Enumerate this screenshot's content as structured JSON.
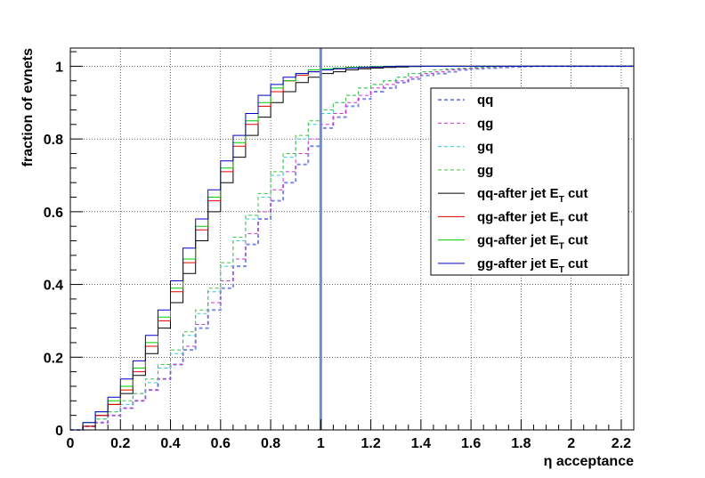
{
  "chart_data": {
    "type": "line",
    "xlabel": "η acceptance",
    "ylabel": "fraction of evnets",
    "xlim": [
      0,
      2.25
    ],
    "ylim": [
      0,
      1.05
    ],
    "x_ticks": [
      "0",
      "0.2",
      "0.4",
      "0.6",
      "0.8",
      "1",
      "1.2",
      "1.4",
      "1.6",
      "1.8",
      "2",
      "2.2"
    ],
    "y_ticks": [
      "0",
      "0.2",
      "0.4",
      "0.6",
      "0.8",
      "1"
    ],
    "grid": true,
    "legend_position": "right",
    "cut_line_x": 1.0,
    "bin_width": 0.05,
    "x": [
      0.0,
      0.05,
      0.1,
      0.15,
      0.2,
      0.25,
      0.3,
      0.35,
      0.4,
      0.45,
      0.5,
      0.55,
      0.6,
      0.65,
      0.7,
      0.75,
      0.8,
      0.85,
      0.9,
      0.95,
      1.0,
      1.05,
      1.1,
      1.15,
      1.2,
      1.25,
      1.3,
      1.35,
      1.4,
      1.45,
      1.5,
      1.55,
      1.6,
      1.65,
      1.7,
      1.75,
      1.8,
      1.85,
      1.9,
      1.95,
      2.0,
      2.05,
      2.1,
      2.15,
      2.2
    ],
    "series": [
      {
        "name": "qq",
        "values": [
          0.0,
          0.01,
          0.02,
          0.04,
          0.06,
          0.08,
          0.11,
          0.14,
          0.18,
          0.22,
          0.28,
          0.33,
          0.39,
          0.45,
          0.51,
          0.58,
          0.63,
          0.68,
          0.73,
          0.78,
          0.83,
          0.86,
          0.89,
          0.91,
          0.93,
          0.94,
          0.955,
          0.965,
          0.975,
          0.98,
          0.985,
          0.99,
          0.993,
          0.995,
          0.997,
          0.998,
          0.999,
          1.0,
          1.0,
          1.0,
          1.0,
          1.0,
          1.0,
          1.0,
          1.0
        ]
      },
      {
        "name": "qg",
        "values": [
          0.0,
          0.01,
          0.02,
          0.04,
          0.06,
          0.08,
          0.11,
          0.14,
          0.18,
          0.23,
          0.29,
          0.35,
          0.41,
          0.47,
          0.54,
          0.6,
          0.66,
          0.71,
          0.76,
          0.8,
          0.84,
          0.87,
          0.9,
          0.92,
          0.94,
          0.95,
          0.96,
          0.97,
          0.98,
          0.985,
          0.99,
          0.993,
          0.995,
          0.997,
          0.998,
          0.999,
          1.0,
          1.0,
          1.0,
          1.0,
          1.0,
          1.0,
          1.0,
          1.0,
          1.0
        ]
      },
      {
        "name": "gq",
        "values": [
          0.0,
          0.01,
          0.03,
          0.05,
          0.07,
          0.1,
          0.13,
          0.17,
          0.21,
          0.26,
          0.32,
          0.38,
          0.45,
          0.52,
          0.58,
          0.64,
          0.7,
          0.75,
          0.8,
          0.84,
          0.87,
          0.9,
          0.92,
          0.94,
          0.95,
          0.96,
          0.97,
          0.98,
          0.985,
          0.99,
          0.993,
          0.995,
          0.997,
          0.998,
          0.999,
          1.0,
          1.0,
          1.0,
          1.0,
          1.0,
          1.0,
          1.0,
          1.0,
          1.0,
          1.0
        ]
      },
      {
        "name": "gg",
        "values": [
          0.0,
          0.01,
          0.03,
          0.05,
          0.08,
          0.1,
          0.14,
          0.18,
          0.22,
          0.27,
          0.33,
          0.39,
          0.46,
          0.53,
          0.59,
          0.65,
          0.71,
          0.76,
          0.81,
          0.85,
          0.88,
          0.9,
          0.92,
          0.94,
          0.95,
          0.96,
          0.97,
          0.98,
          0.985,
          0.99,
          0.993,
          0.995,
          0.997,
          0.998,
          0.999,
          1.0,
          1.0,
          1.0,
          1.0,
          1.0,
          1.0,
          1.0,
          1.0,
          1.0,
          1.0
        ]
      },
      {
        "name": "qq-after jet E_T cut",
        "values": [
          0.0,
          0.01,
          0.04,
          0.07,
          0.1,
          0.15,
          0.21,
          0.28,
          0.35,
          0.43,
          0.52,
          0.6,
          0.68,
          0.75,
          0.81,
          0.86,
          0.9,
          0.93,
          0.955,
          0.97,
          0.98,
          0.985,
          0.99,
          0.993,
          0.995,
          0.997,
          0.998,
          0.999,
          1.0,
          1.0,
          1.0,
          1.0,
          1.0,
          1.0,
          1.0,
          1.0,
          1.0,
          1.0,
          1.0,
          1.0,
          1.0,
          1.0,
          1.0,
          1.0,
          1.0
        ]
      },
      {
        "name": "qg-after jet E_T cut",
        "values": [
          0.0,
          0.01,
          0.04,
          0.07,
          0.11,
          0.16,
          0.23,
          0.3,
          0.38,
          0.46,
          0.55,
          0.63,
          0.71,
          0.78,
          0.84,
          0.89,
          0.93,
          0.96,
          0.975,
          0.985,
          0.99,
          0.993,
          0.995,
          0.997,
          0.998,
          0.999,
          1.0,
          1.0,
          1.0,
          1.0,
          1.0,
          1.0,
          1.0,
          1.0,
          1.0,
          1.0,
          1.0,
          1.0,
          1.0,
          1.0,
          1.0,
          1.0,
          1.0,
          1.0,
          1.0
        ]
      },
      {
        "name": "gq-after jet E_T cut",
        "values": [
          0.0,
          0.02,
          0.05,
          0.08,
          0.12,
          0.17,
          0.24,
          0.31,
          0.39,
          0.47,
          0.56,
          0.64,
          0.72,
          0.79,
          0.85,
          0.9,
          0.94,
          0.96,
          0.98,
          0.99,
          0.993,
          0.995,
          0.997,
          0.998,
          0.999,
          1.0,
          1.0,
          1.0,
          1.0,
          1.0,
          1.0,
          1.0,
          1.0,
          1.0,
          1.0,
          1.0,
          1.0,
          1.0,
          1.0,
          1.0,
          1.0,
          1.0,
          1.0,
          1.0,
          1.0
        ]
      },
      {
        "name": "gg-after jet E_T cut",
        "values": [
          0.0,
          0.02,
          0.05,
          0.09,
          0.14,
          0.19,
          0.26,
          0.33,
          0.41,
          0.5,
          0.58,
          0.66,
          0.74,
          0.81,
          0.87,
          0.92,
          0.95,
          0.97,
          0.98,
          0.985,
          0.99,
          0.993,
          0.995,
          0.997,
          0.998,
          0.999,
          1.0,
          1.0,
          1.0,
          1.0,
          1.0,
          1.0,
          1.0,
          1.0,
          1.0,
          1.0,
          1.0,
          1.0,
          1.0,
          1.0,
          1.0,
          1.0,
          1.0,
          1.0,
          1.0
        ]
      }
    ]
  },
  "legend": [
    {
      "base": "qq",
      "sub": "",
      "tail": "",
      "color": "#7f8be0",
      "dash": "4,3",
      "width": 2
    },
    {
      "base": "qg",
      "sub": "",
      "tail": "",
      "color": "#cc33cc",
      "dash": "4,3",
      "width": 1
    },
    {
      "base": "gq",
      "sub": "",
      "tail": "",
      "color": "#33cccc",
      "dash": "4,3",
      "width": 1
    },
    {
      "base": "gg",
      "sub": "",
      "tail": "",
      "color": "#44c044",
      "dash": "4,3",
      "width": 1
    },
    {
      "base": "qq-after jet E",
      "sub": "T",
      "tail": " cut",
      "color": "#000000",
      "dash": "",
      "width": 1
    },
    {
      "base": "qg-after jet E",
      "sub": "T",
      "tail": " cut",
      "color": "#e00000",
      "dash": "",
      "width": 1
    },
    {
      "base": "gq-after jet E",
      "sub": "T",
      "tail": " cut",
      "color": "#00cc00",
      "dash": "",
      "width": 1
    },
    {
      "base": "gg-after jet E",
      "sub": "T",
      "tail": " cut",
      "color": "#0000cc",
      "dash": "",
      "width": 1
    }
  ],
  "colors": {
    "cut_line": "#6e8ed0",
    "grid": "#000000",
    "frame": "#000000"
  }
}
